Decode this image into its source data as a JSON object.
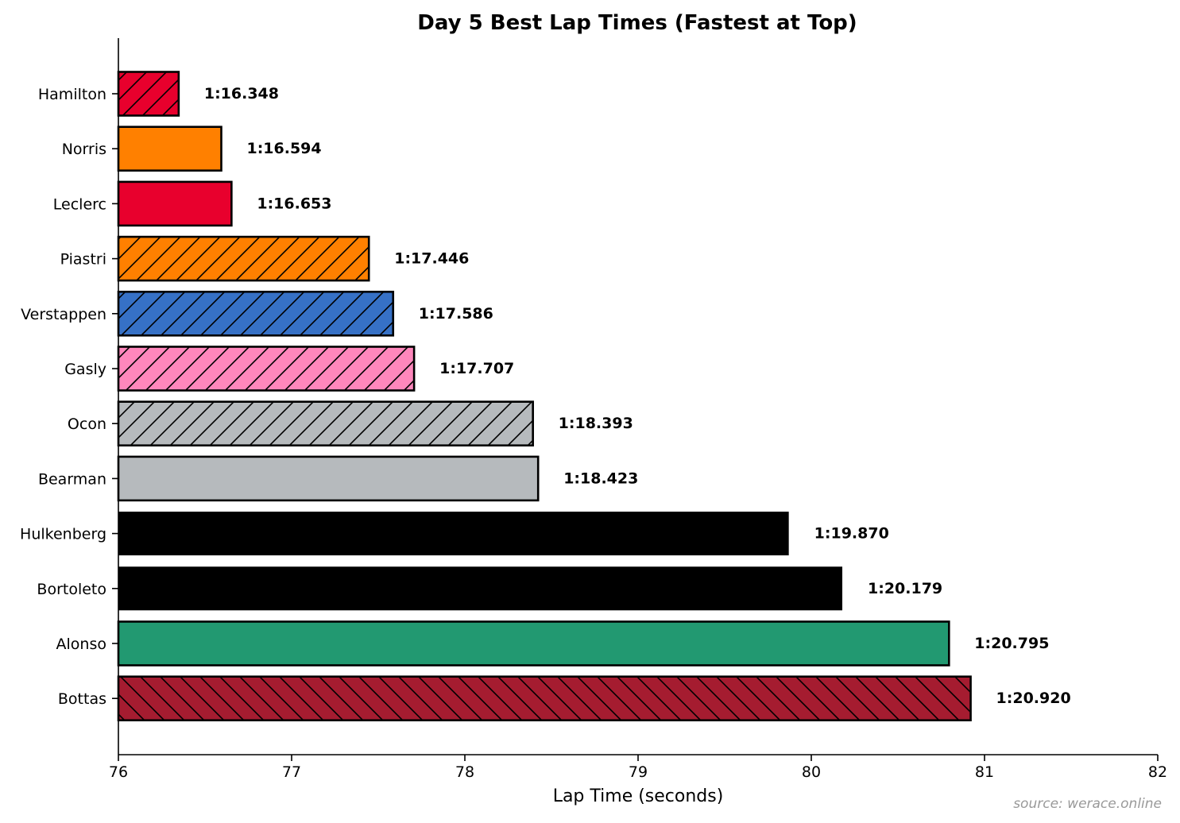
{
  "chart_data": {
    "type": "bar",
    "orientation": "horizontal",
    "title": "Day 5 Best Lap Times (Fastest at Top)",
    "xlabel": "Lap Time (seconds)",
    "ylabel": "",
    "xlim": [
      76,
      82
    ],
    "xticks": [
      "76",
      "77",
      "78",
      "79",
      "80",
      "81",
      "82"
    ],
    "grid": false,
    "legend": null,
    "categories": [
      "Hamilton",
      "Norris",
      "Leclerc",
      "Piastri",
      "Verstappen",
      "Gasly",
      "Ocon",
      "Bearman",
      "Hulkenberg",
      "Bortoleto",
      "Alonso",
      "Bottas"
    ],
    "values": [
      76.348,
      76.594,
      76.653,
      77.446,
      77.586,
      77.707,
      78.393,
      78.423,
      79.87,
      80.179,
      80.795,
      80.92
    ],
    "labels": [
      "1:16.348",
      "1:16.594",
      "1:16.653",
      "1:17.446",
      "1:17.586",
      "1:17.707",
      "1:18.393",
      "1:18.423",
      "1:19.870",
      "1:20.179",
      "1:20.795",
      "1:20.920"
    ],
    "colors": [
      "#E8002D",
      "#FF8000",
      "#E8002D",
      "#FF8000",
      "#3671C6",
      "#FF87BC",
      "#B6BABD",
      "#B6BABD",
      "#000000",
      "#000000",
      "#229971",
      "#A51C30"
    ],
    "hatches": [
      "/",
      "",
      "",
      "/",
      "/",
      "/",
      "/",
      "",
      "",
      "",
      "",
      "\\"
    ],
    "annotation": "source: werace.online"
  }
}
